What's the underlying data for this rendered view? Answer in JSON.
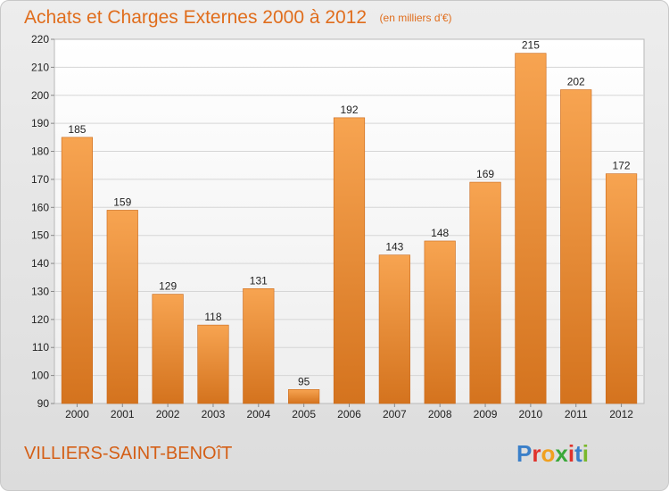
{
  "chart_data": {
    "type": "bar",
    "title": "Achats et Charges Externes 2000 à 2012",
    "unit_note": "(en milliers d'€)",
    "categories": [
      "2000",
      "2001",
      "2002",
      "2003",
      "2004",
      "2005",
      "2006",
      "2007",
      "2008",
      "2009",
      "2010",
      "2011",
      "2012"
    ],
    "values": [
      185,
      159,
      129,
      118,
      131,
      95,
      192,
      143,
      148,
      169,
      215,
      202,
      172
    ],
    "ylim": [
      90,
      220
    ],
    "yticks": [
      90,
      100,
      110,
      120,
      130,
      140,
      150,
      160,
      170,
      180,
      190,
      200,
      210,
      220
    ],
    "grid": true,
    "xlabel": "",
    "ylabel": "",
    "bar_color": "#f0913a"
  },
  "footer": {
    "city": "VILLIERS-SAINT-BENOîT",
    "brand_letters": [
      "P",
      "r",
      "o",
      "x",
      "i",
      "t",
      "i"
    ],
    "brand_colors": [
      "#3a7fc9",
      "#e0332c",
      "#f0a020",
      "#3aa83a",
      "#e0332c",
      "#3a7fc9",
      "#7ab82c"
    ]
  }
}
